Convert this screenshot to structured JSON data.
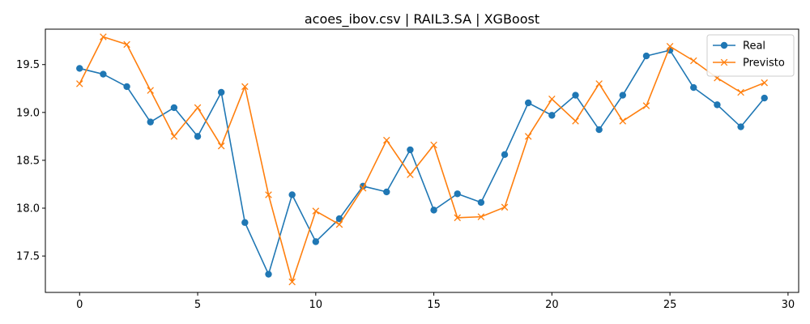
{
  "chart_data": {
    "type": "line",
    "title": "acoes_ibov.csv | RAIL3.SA | XGBoost",
    "xlabel": "",
    "ylabel": "",
    "xlim": [
      -1.45,
      30.45
    ],
    "ylim": [
      17.12,
      19.87
    ],
    "xticks": [
      0,
      5,
      10,
      15,
      20,
      25,
      30
    ],
    "yticks": [
      17.5,
      18.0,
      18.5,
      19.0,
      19.5
    ],
    "ytick_labels": [
      "17.5",
      "18.0",
      "18.5",
      "19.0",
      "19.5"
    ],
    "grid": false,
    "legend_position": "top-right",
    "x": [
      0,
      1,
      2,
      3,
      4,
      5,
      6,
      7,
      8,
      9,
      10,
      11,
      12,
      13,
      14,
      15,
      16,
      17,
      18,
      19,
      20,
      21,
      22,
      23,
      24,
      25,
      26,
      27,
      28,
      29
    ],
    "series": [
      {
        "name": "Real",
        "color": "#1f77b4",
        "marker": "circle",
        "values": [
          19.46,
          19.4,
          19.27,
          18.9,
          19.05,
          18.75,
          19.21,
          17.85,
          17.31,
          18.14,
          17.65,
          17.89,
          18.23,
          18.17,
          18.61,
          17.98,
          18.15,
          18.06,
          18.56,
          19.1,
          18.97,
          19.18,
          18.82,
          19.18,
          19.59,
          19.65,
          19.26,
          19.08,
          18.85,
          19.15
        ]
      },
      {
        "name": "Previsto",
        "color": "#ff7f0e",
        "marker": "x",
        "values": [
          19.3,
          19.79,
          19.71,
          19.23,
          18.75,
          19.05,
          18.65,
          19.27,
          18.14,
          17.23,
          17.97,
          17.83,
          18.21,
          18.71,
          18.35,
          18.66,
          17.9,
          17.91,
          18.01,
          18.75,
          19.14,
          18.91,
          19.3,
          18.91,
          19.07,
          19.69,
          19.54,
          19.36,
          19.21,
          19.31
        ]
      }
    ]
  }
}
